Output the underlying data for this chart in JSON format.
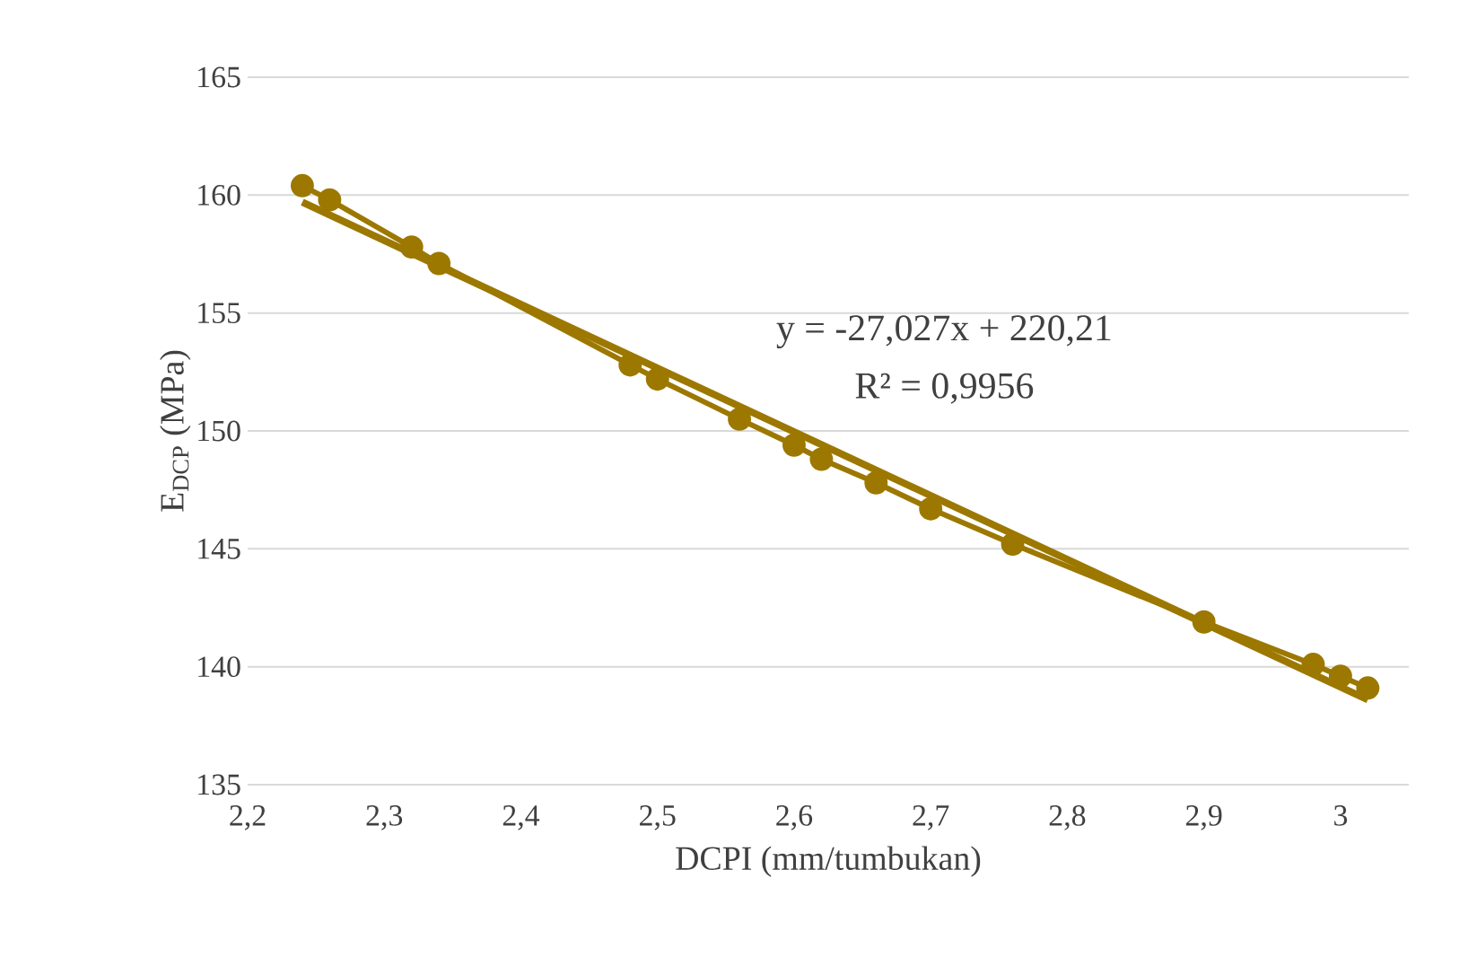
{
  "chart_data": {
    "type": "line",
    "xlabel": "DCPI (mm/tumbukan)",
    "ylabel": "E$_{DCP}$ (MPa)",
    "xlim": [
      2.2,
      3.05
    ],
    "ylim": [
      135,
      165
    ],
    "xticks": [
      {
        "value": 2.2,
        "label": "2,2"
      },
      {
        "value": 2.3,
        "label": "2,3"
      },
      {
        "value": 2.4,
        "label": "2,4"
      },
      {
        "value": 2.5,
        "label": "2,5"
      },
      {
        "value": 2.6,
        "label": "2,6"
      },
      {
        "value": 2.7,
        "label": "2,7"
      },
      {
        "value": 2.8,
        "label": "2,8"
      },
      {
        "value": 2.9,
        "label": "2,9"
      },
      {
        "value": 3,
        "label": "3"
      }
    ],
    "yticks": [
      135,
      140,
      145,
      150,
      155,
      160,
      165
    ],
    "grid": "y",
    "series": [
      {
        "marker": "circle",
        "color": "#9c7800",
        "x": [
          2.24,
          2.26,
          2.32,
          2.34,
          2.48,
          2.5,
          2.56,
          2.6,
          2.62,
          2.66,
          2.7,
          2.76,
          2.9,
          2.98,
          3.0,
          3.02
        ],
        "values": [
          160.4,
          159.8,
          157.8,
          157.1,
          152.8,
          152.2,
          150.5,
          149.4,
          148.8,
          147.8,
          146.7,
          145.2,
          141.9,
          140.1,
          139.6,
          139.1
        ]
      },
      {
        "marker": "none",
        "color": "#9c7800",
        "x": [
          2.24,
          3.02
        ],
        "values": [
          159.7,
          138.6
        ]
      }
    ],
    "annotations": [
      "y = -27,027x + 220,21",
      "R² = 0,9956"
    ]
  }
}
